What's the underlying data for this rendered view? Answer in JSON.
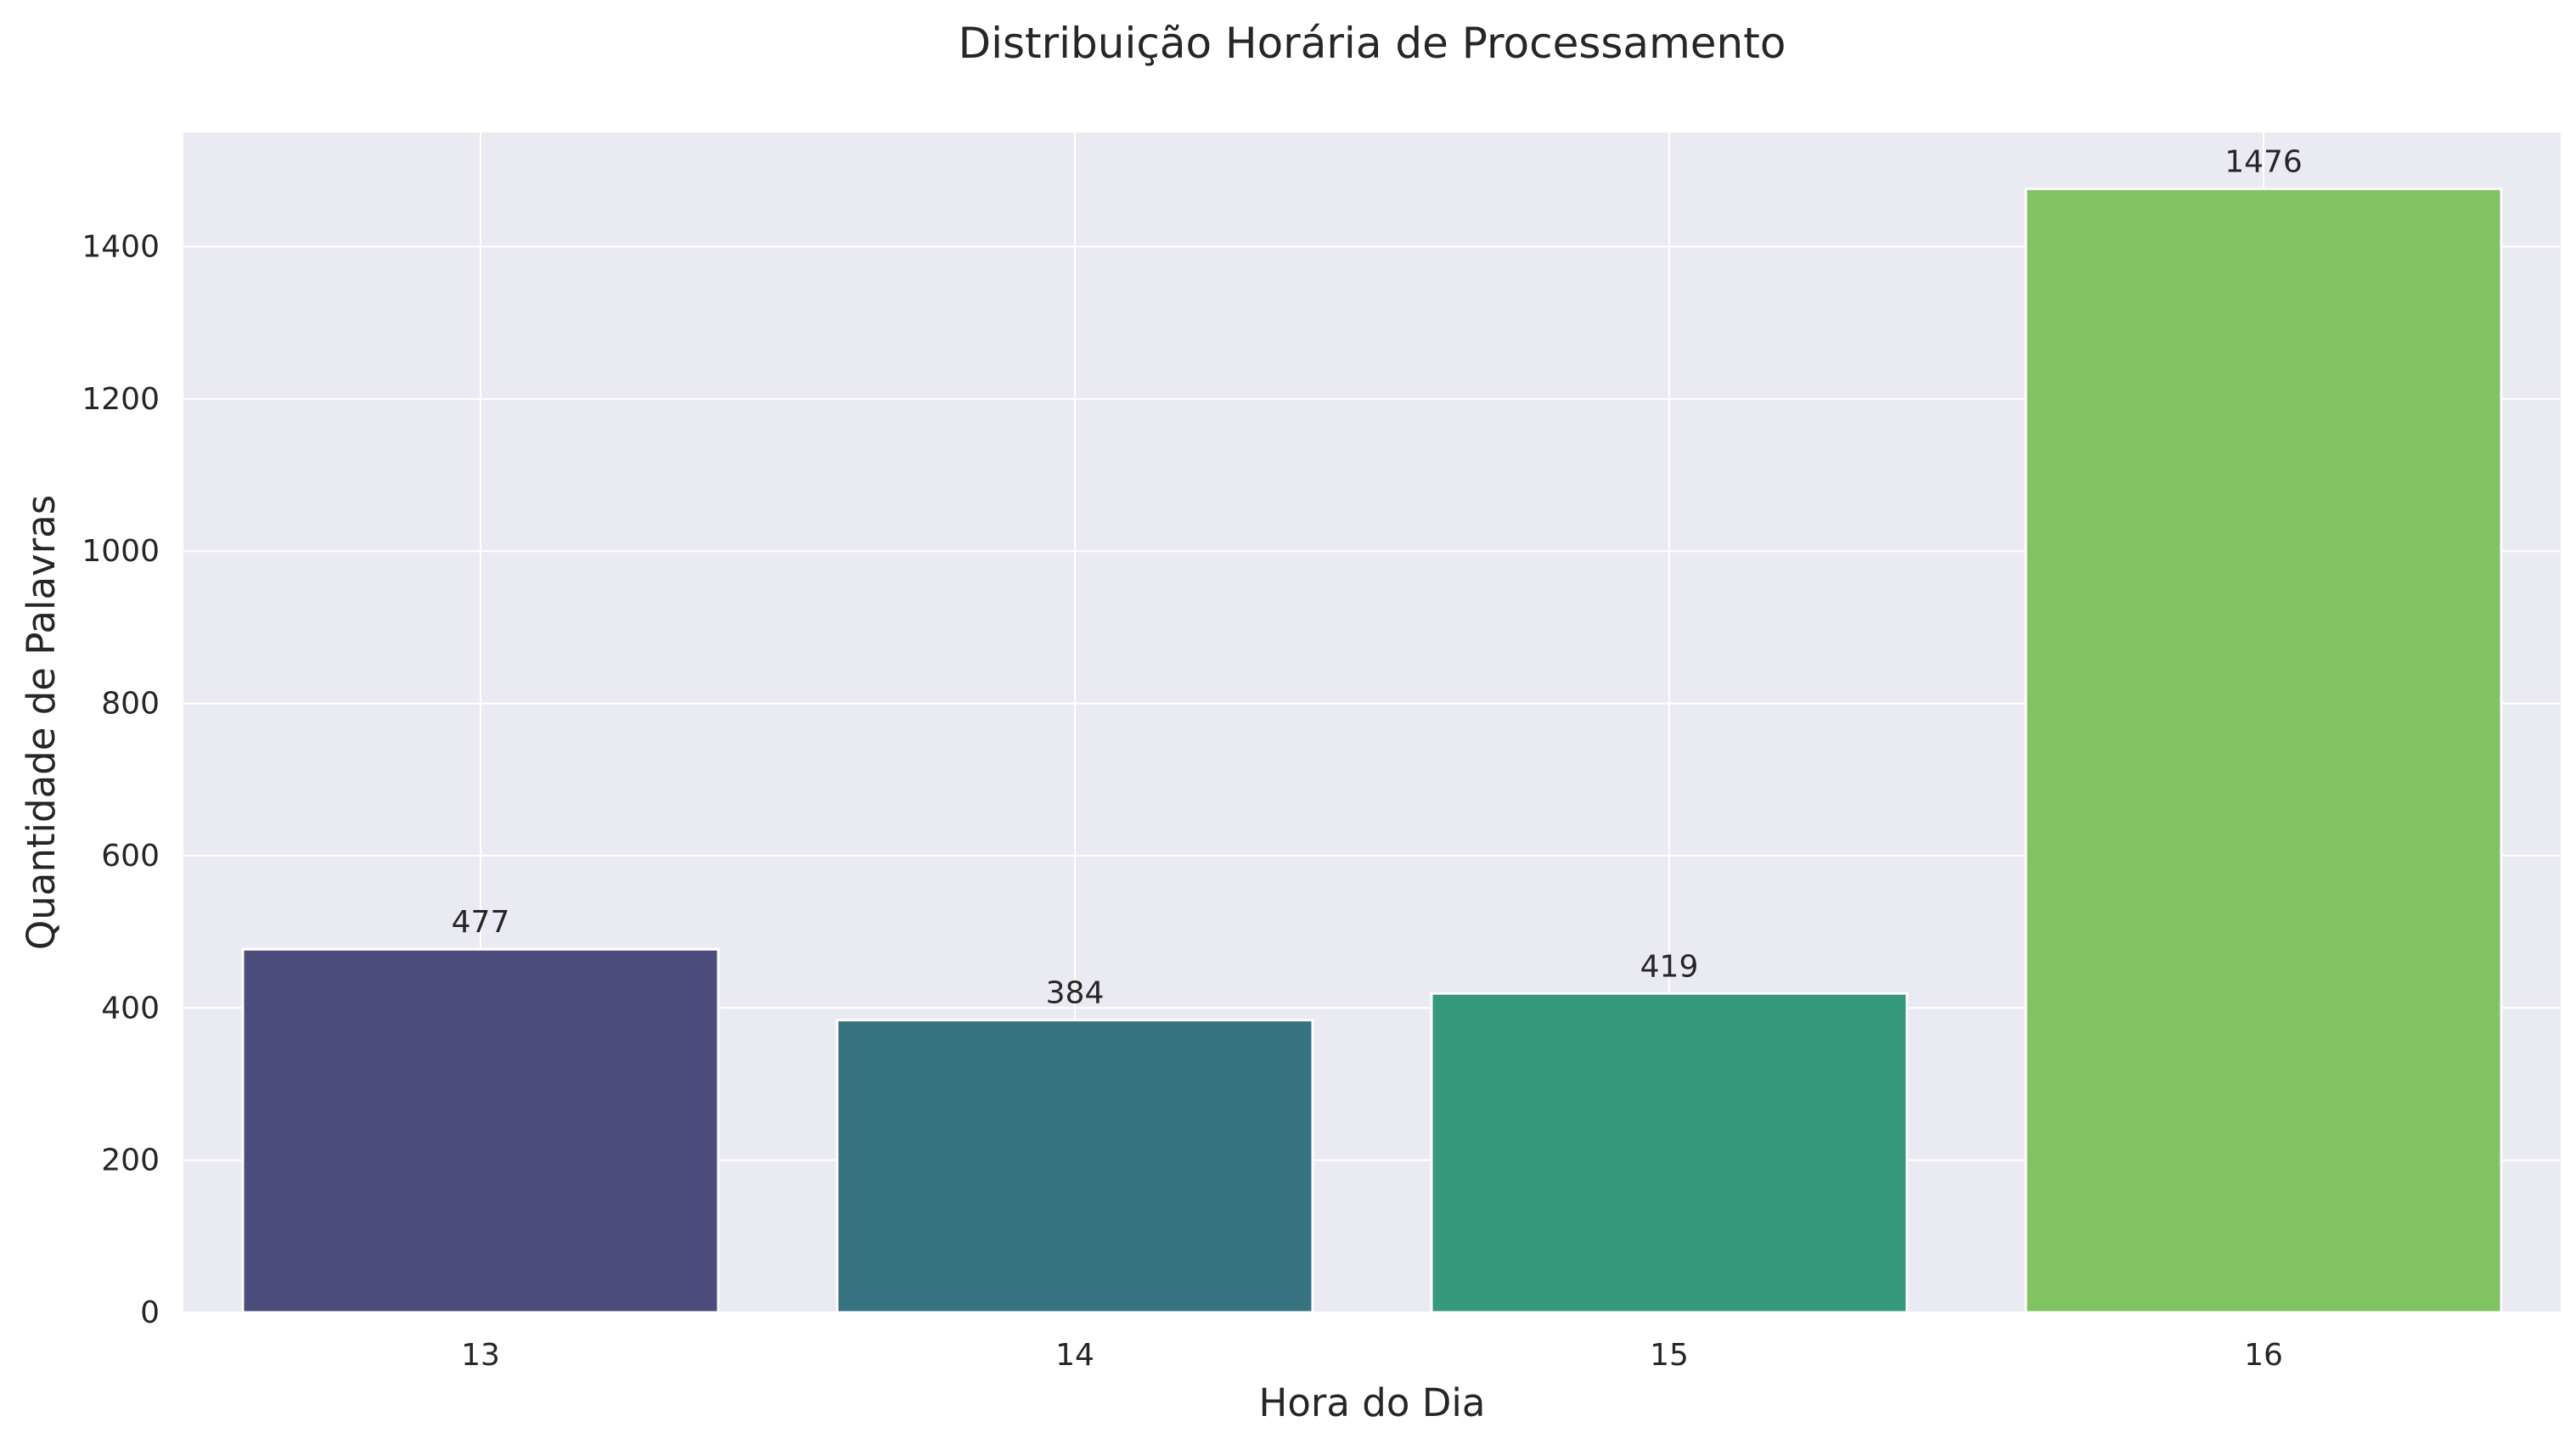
{
  "chart_data": {
    "type": "bar",
    "title": "Distribuição Horária de Processamento",
    "xlabel": "Hora do Dia",
    "ylabel": "Quantidade de Palavras",
    "categories": [
      "13",
      "14",
      "15",
      "16"
    ],
    "values": [
      477,
      384,
      419,
      1476
    ],
    "value_labels": [
      "477",
      "384",
      "419",
      "1476"
    ],
    "colors": [
      "#4b4c7c",
      "#377280",
      "#37997c",
      "#81c263"
    ],
    "ylim": [
      0,
      1550
    ],
    "yticks": [
      0,
      200,
      400,
      600,
      800,
      1000,
      1200,
      1400
    ],
    "ytick_labels": [
      "0",
      "200",
      "400",
      "600",
      "800",
      "1000",
      "1200",
      "1400"
    ],
    "grid": true,
    "background": "#eaeaf2"
  }
}
